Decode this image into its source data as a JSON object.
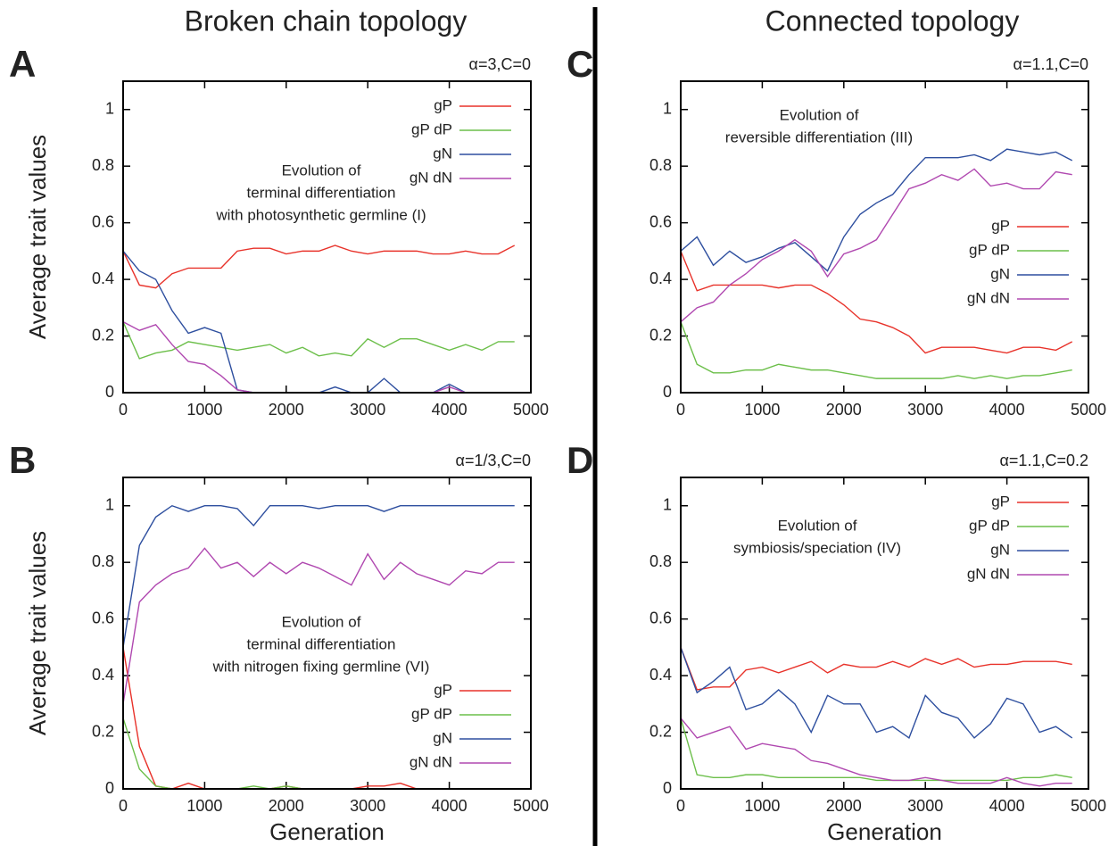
{
  "columns": [
    "Broken chain topology",
    "Connected topology"
  ],
  "chart_data": [
    {
      "type": "line",
      "panel": "A",
      "corner_label": "α=3,C=0",
      "ylabel": "Average trait values",
      "annotation": [
        "Evolution of",
        "terminal differentiation",
        "with photosynthetic germline (I)"
      ],
      "legend": "upper right",
      "xlim": [
        0,
        5000
      ],
      "ylim": [
        0,
        1.1
      ],
      "xticks": [
        0,
        1000,
        2000,
        3000,
        4000,
        5000
      ],
      "yticks": [
        0,
        0.2,
        0.4,
        0.6,
        0.8,
        1
      ],
      "x": [
        0,
        200,
        400,
        600,
        800,
        1000,
        1200,
        1400,
        1600,
        1800,
        2000,
        2200,
        2400,
        2600,
        2800,
        3000,
        3200,
        3400,
        3600,
        3800,
        4000,
        4200,
        4400,
        4600,
        4800
      ],
      "series": [
        {
          "name": "gP",
          "color": "#e8322a",
          "values": [
            0.5,
            0.38,
            0.37,
            0.42,
            0.44,
            0.44,
            0.44,
            0.5,
            0.51,
            0.51,
            0.49,
            0.5,
            0.5,
            0.52,
            0.5,
            0.49,
            0.5,
            0.5,
            0.5,
            0.49,
            0.49,
            0.5,
            0.49,
            0.49,
            0.52
          ]
        },
        {
          "name": "gP dP",
          "color": "#6cbf4a",
          "values": [
            0.25,
            0.12,
            0.14,
            0.15,
            0.18,
            0.17,
            0.16,
            0.15,
            0.16,
            0.17,
            0.14,
            0.16,
            0.13,
            0.14,
            0.13,
            0.19,
            0.16,
            0.19,
            0.19,
            0.17,
            0.15,
            0.17,
            0.15,
            0.18,
            0.18
          ]
        },
        {
          "name": "gN",
          "color": "#2e4f9f",
          "values": [
            0.5,
            0.43,
            0.4,
            0.29,
            0.21,
            0.23,
            0.21,
            0.01,
            0,
            0,
            0,
            0,
            0,
            0.02,
            0,
            0,
            0.05,
            0,
            0,
            0,
            0.03,
            0,
            0,
            null,
            null
          ]
        },
        {
          "name": "gN dN",
          "color": "#b048b0",
          "values": [
            0.25,
            0.22,
            0.24,
            0.17,
            0.11,
            0.1,
            0.06,
            0.01,
            0,
            0,
            0,
            0,
            0,
            0,
            0,
            0,
            0,
            0,
            0,
            0,
            0.02,
            0,
            null,
            null,
            null
          ]
        }
      ]
    },
    {
      "type": "line",
      "panel": "C",
      "corner_label": "α=1.1,C=0",
      "annotation": [
        "Evolution of",
        "reversible differentiation (III)"
      ],
      "legend": "center right",
      "xlim": [
        0,
        5000
      ],
      "ylim": [
        0,
        1.1
      ],
      "xticks": [
        0,
        1000,
        2000,
        3000,
        4000,
        5000
      ],
      "yticks": [
        0,
        0.2,
        0.4,
        0.6,
        0.8,
        1
      ],
      "x": [
        0,
        200,
        400,
        600,
        800,
        1000,
        1200,
        1400,
        1600,
        1800,
        2000,
        2200,
        2400,
        2600,
        2800,
        3000,
        3200,
        3400,
        3600,
        3800,
        4000,
        4200,
        4400,
        4600,
        4800
      ],
      "series": [
        {
          "name": "gP",
          "color": "#e8322a",
          "values": [
            0.5,
            0.36,
            0.38,
            0.38,
            0.38,
            0.38,
            0.37,
            0.38,
            0.38,
            0.35,
            0.31,
            0.26,
            0.25,
            0.23,
            0.2,
            0.14,
            0.16,
            0.16,
            0.16,
            0.15,
            0.14,
            0.16,
            0.16,
            0.15,
            0.18
          ]
        },
        {
          "name": "gP dP",
          "color": "#6cbf4a",
          "values": [
            0.25,
            0.1,
            0.07,
            0.07,
            0.08,
            0.08,
            0.1,
            0.09,
            0.08,
            0.08,
            0.07,
            0.06,
            0.05,
            0.05,
            0.05,
            0.05,
            0.05,
            0.06,
            0.05,
            0.06,
            0.05,
            0.06,
            0.06,
            0.07,
            0.08
          ]
        },
        {
          "name": "gN",
          "color": "#2e4f9f",
          "values": [
            0.5,
            0.55,
            0.45,
            0.5,
            0.46,
            0.48,
            0.51,
            0.53,
            0.48,
            0.43,
            0.55,
            0.63,
            0.67,
            0.7,
            0.77,
            0.83,
            0.83,
            0.83,
            0.84,
            0.82,
            0.86,
            0.85,
            0.84,
            0.85,
            0.82
          ]
        },
        {
          "name": "gN dN",
          "color": "#b048b0",
          "values": [
            0.25,
            0.3,
            0.32,
            0.38,
            0.42,
            0.47,
            0.5,
            0.54,
            0.5,
            0.41,
            0.49,
            0.51,
            0.54,
            0.63,
            0.72,
            0.74,
            0.77,
            0.75,
            0.79,
            0.73,
            0.74,
            0.72,
            0.72,
            0.78,
            0.77
          ]
        }
      ]
    },
    {
      "type": "line",
      "panel": "B",
      "corner_label": "α=1/3,C=0",
      "ylabel": "Average trait values",
      "xlabel": "Generation",
      "annotation": [
        "Evolution of",
        "terminal differentiation",
        "with nitrogen fixing germline (VI)"
      ],
      "legend": "lower right",
      "xlim": [
        0,
        5000
      ],
      "ylim": [
        0,
        1.1
      ],
      "xticks": [
        0,
        1000,
        2000,
        3000,
        4000,
        5000
      ],
      "yticks": [
        0,
        0.2,
        0.4,
        0.6,
        0.8,
        1
      ],
      "x": [
        0,
        200,
        400,
        600,
        800,
        1000,
        1200,
        1400,
        1600,
        1800,
        2000,
        2200,
        2400,
        2600,
        2800,
        3000,
        3200,
        3400,
        3600,
        3800,
        4000,
        4200,
        4400,
        4600,
        4800
      ],
      "series": [
        {
          "name": "gP",
          "color": "#e8322a",
          "values": [
            0.5,
            0.15,
            0.01,
            0,
            0.02,
            0,
            0,
            0,
            0,
            0,
            0.01,
            0,
            0,
            0,
            0,
            0.01,
            0.01,
            0.02,
            0,
            0,
            0,
            0,
            0,
            0,
            0
          ]
        },
        {
          "name": "gP dP",
          "color": "#6cbf4a",
          "values": [
            0.25,
            0.07,
            0.01,
            0,
            0,
            0,
            0,
            0,
            0.01,
            0,
            0.01,
            0,
            0,
            0,
            0,
            0,
            0,
            0,
            0,
            0,
            0,
            0,
            0,
            0,
            0
          ]
        },
        {
          "name": "gN",
          "color": "#2e4f9f",
          "values": [
            0.5,
            0.86,
            0.96,
            1,
            0.98,
            1,
            1,
            0.99,
            0.93,
            1,
            1,
            1,
            0.99,
            1,
            1,
            1,
            0.98,
            1,
            1,
            1,
            1,
            1,
            1,
            1,
            1
          ]
        },
        {
          "name": "gN dN",
          "color": "#b048b0",
          "values": [
            0.3,
            0.66,
            0.72,
            0.76,
            0.78,
            0.85,
            0.78,
            0.8,
            0.75,
            0.8,
            0.76,
            0.8,
            0.78,
            0.75,
            0.72,
            0.83,
            0.74,
            0.8,
            0.76,
            0.74,
            0.72,
            0.77,
            0.76,
            0.8,
            0.8
          ]
        }
      ]
    },
    {
      "type": "line",
      "panel": "D",
      "corner_label": "α=1.1,C=0.2",
      "xlabel": "Generation",
      "annotation": [
        "Evolution of",
        "symbiosis/speciation (IV)"
      ],
      "legend": "upper right",
      "xlim": [
        0,
        5000
      ],
      "ylim": [
        0,
        1.1
      ],
      "xticks": [
        0,
        1000,
        2000,
        3000,
        4000,
        5000
      ],
      "yticks": [
        0,
        0.2,
        0.4,
        0.6,
        0.8,
        1
      ],
      "x": [
        0,
        200,
        400,
        600,
        800,
        1000,
        1200,
        1400,
        1600,
        1800,
        2000,
        2200,
        2400,
        2600,
        2800,
        3000,
        3200,
        3400,
        3600,
        3800,
        4000,
        4200,
        4400,
        4600,
        4800
      ],
      "series": [
        {
          "name": "gP",
          "color": "#e8322a",
          "values": [
            0.5,
            0.35,
            0.36,
            0.36,
            0.42,
            0.43,
            0.41,
            0.43,
            0.45,
            0.41,
            0.44,
            0.43,
            0.43,
            0.45,
            0.43,
            0.46,
            0.44,
            0.46,
            0.43,
            0.44,
            0.44,
            0.45,
            0.45,
            0.45,
            0.44
          ]
        },
        {
          "name": "gP dP",
          "color": "#6cbf4a",
          "values": [
            0.25,
            0.05,
            0.04,
            0.04,
            0.05,
            0.05,
            0.04,
            0.04,
            0.04,
            0.04,
            0.04,
            0.04,
            0.03,
            0.03,
            0.03,
            0.03,
            0.03,
            0.03,
            0.03,
            0.03,
            0.03,
            0.04,
            0.04,
            0.05,
            0.04
          ]
        },
        {
          "name": "gN",
          "color": "#2e4f9f",
          "values": [
            0.5,
            0.34,
            0.38,
            0.43,
            0.28,
            0.3,
            0.35,
            0.3,
            0.2,
            0.33,
            0.3,
            0.3,
            0.2,
            0.22,
            0.18,
            0.33,
            0.27,
            0.25,
            0.18,
            0.23,
            0.32,
            0.3,
            0.2,
            0.22,
            0.18
          ]
        },
        {
          "name": "gN dN",
          "color": "#b048b0",
          "values": [
            0.25,
            0.18,
            0.2,
            0.22,
            0.14,
            0.16,
            0.15,
            0.14,
            0.1,
            0.09,
            0.07,
            0.05,
            0.04,
            0.03,
            0.03,
            0.04,
            0.03,
            0.02,
            0.02,
            0.02,
            0.04,
            0.02,
            0.01,
            0.02,
            0.02
          ]
        }
      ]
    }
  ]
}
